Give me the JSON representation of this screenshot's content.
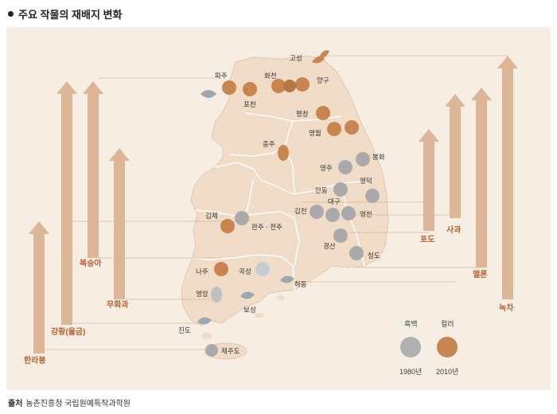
{
  "title": "주요 작물의 재배지 변화",
  "source_label": "출처",
  "source_text": "농촌진흥청 국립원예특작과학원",
  "colors": {
    "background": "#f6ede3",
    "land": "#f1dcc8",
    "border": "#ffffff",
    "arrow": "#dcb696",
    "accent": "#b8622e",
    "old": "#b0b0b0",
    "new": "#c98550"
  },
  "crops": {
    "hallabong": "한라봉",
    "gangwhang": "강황(울금)",
    "boksunga": "복숭아",
    "muhwagwa": "무화과",
    "podo": "포도",
    "sagwa": "사과",
    "mellon": "멜론",
    "nokcha": "녹차"
  },
  "places": {
    "goseong": "고성",
    "paju": "파주",
    "hwacheon": "화천",
    "yanggu": "양구",
    "pocheon": "포천",
    "pyeongchang": "평창",
    "yeongwol": "영월",
    "chungju": "충주",
    "bonghwa": "봉화",
    "yeongju": "영주",
    "andong": "안동",
    "yeongdeok": "영덕",
    "gimcheon": "김천",
    "daegu": "대구",
    "yeongcheon": "영천",
    "gimje": "김제",
    "wanju": "완주 · 전주",
    "gyeongsan": "경산",
    "cheongdo": "청도",
    "naju": "나주",
    "gokseong": "곡성",
    "hadong": "하동",
    "yeongam": "영암",
    "boseong": "보성",
    "jindo": "진도",
    "jeju": "제주도"
  },
  "legend": {
    "old_label": "흑백",
    "new_label": "컬러",
    "old_year": "1980년",
    "new_year": "2010년"
  }
}
